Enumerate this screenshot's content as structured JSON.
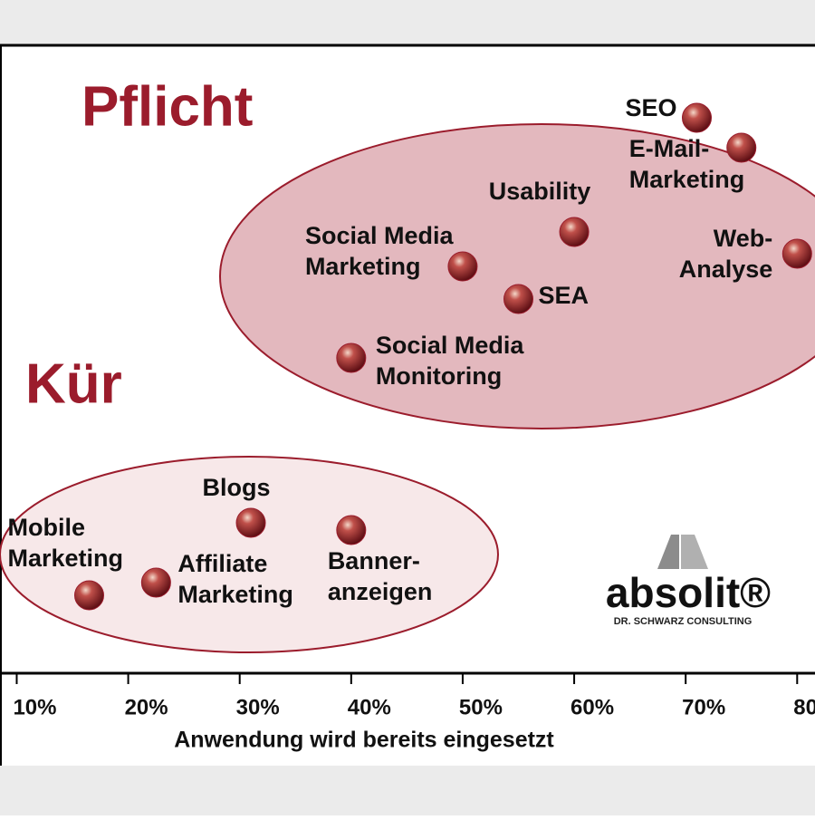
{
  "chart_data": {
    "type": "scatter",
    "annotations": {
      "must": "Pflicht",
      "optional": "Kür"
    },
    "xlabel": "Anwendung wird bereits eingesetzt",
    "xlim": [
      8.5,
      81.6
    ],
    "xticks": [
      {
        "value": 10,
        "label": "10%"
      },
      {
        "value": 20,
        "label": "20%"
      },
      {
        "value": 30,
        "label": "30%"
      },
      {
        "value": 40,
        "label": "40%"
      },
      {
        "value": 50,
        "label": "50%"
      },
      {
        "value": 60,
        "label": "60%"
      },
      {
        "value": 70,
        "label": "70%"
      },
      {
        "value": 80,
        "label": "80%"
      }
    ],
    "labels": [
      [
        "SEO"
      ],
      [
        "E-Mail-",
        "Marketing"
      ],
      [
        "Web-",
        "Analyse"
      ],
      [
        "Usability"
      ],
      [
        "Social Media",
        "Marketing"
      ],
      [
        "SEA"
      ],
      [
        "Social Media",
        "Monitoring"
      ],
      [
        "Blogs"
      ],
      [
        "Banner-",
        "anzeigen"
      ],
      [
        "Affiliate",
        "Marketing"
      ],
      [
        "Mobile",
        "Marketing"
      ]
    ],
    "x": [
      71,
      75,
      80,
      60,
      50,
      55,
      40,
      31,
      40,
      22.5,
      16.5
    ],
    "color": "#9b1c2c",
    "logo": {
      "brand": "absolit®",
      "tagline": "DR. SCHWARZ CONSULTING"
    }
  }
}
